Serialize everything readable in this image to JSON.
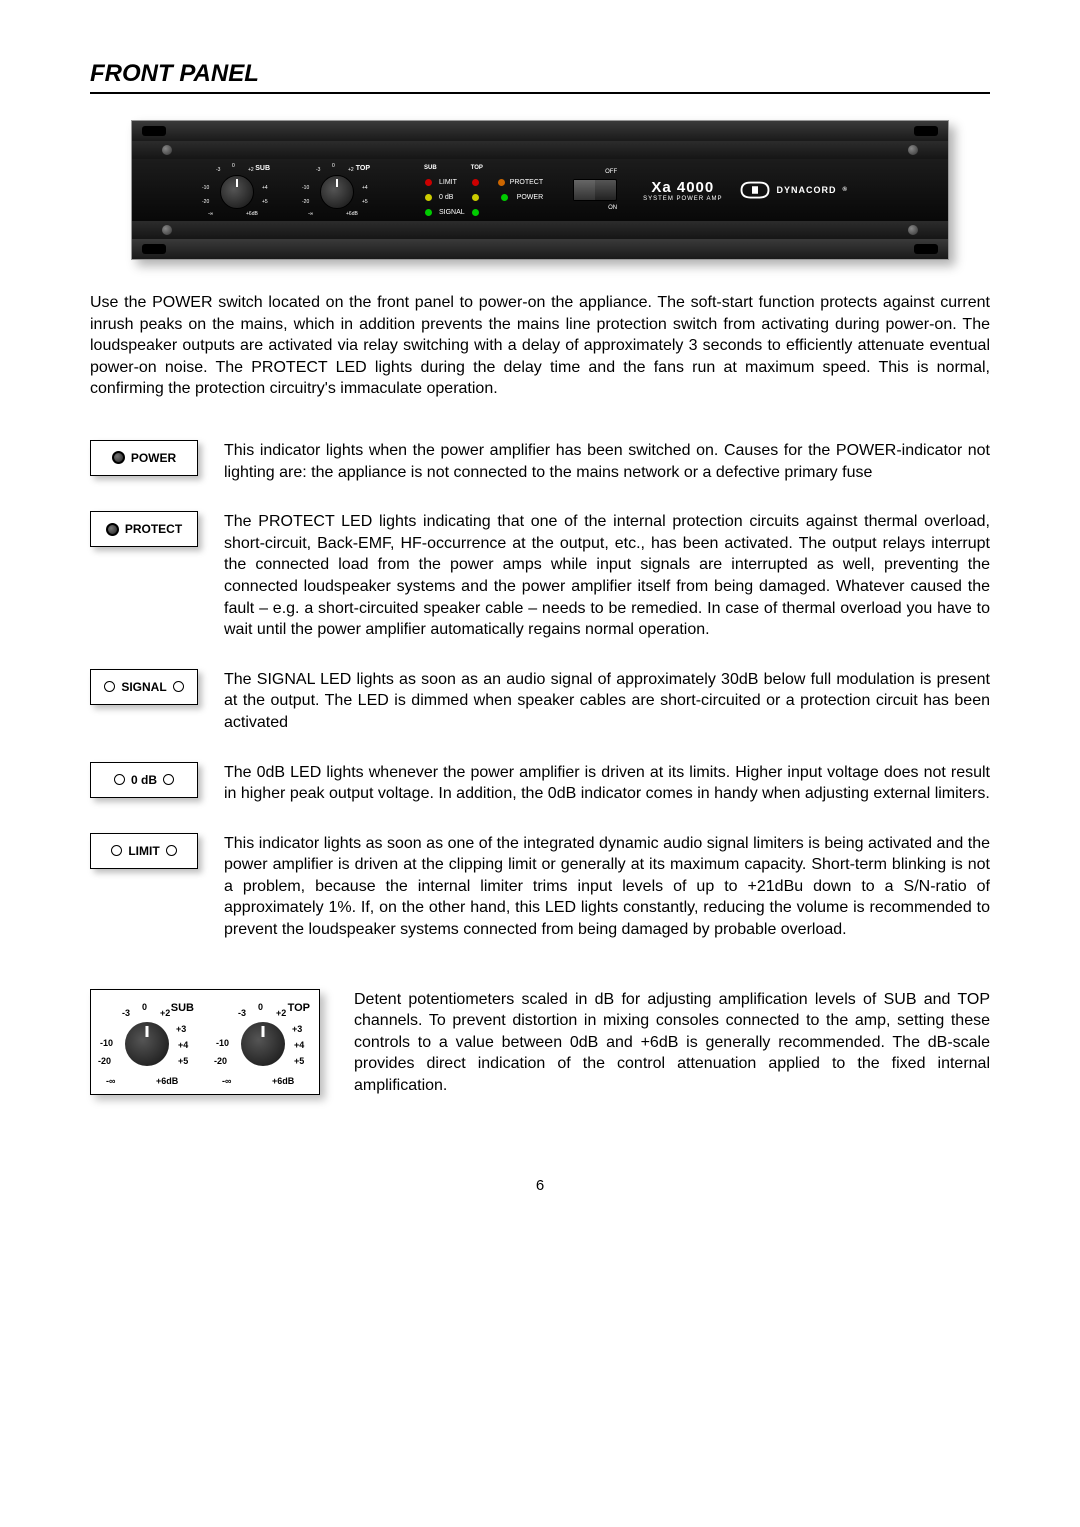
{
  "title": "FRONT PANEL",
  "panel": {
    "knob_sub_label": "SUB",
    "knob_top_label": "TOP",
    "knob_scale": [
      "-3",
      "0",
      "+2",
      "+3",
      "-10",
      "+4",
      "-20",
      "+5",
      "-∞",
      "+6dB"
    ],
    "led_headers": {
      "left": "SUB",
      "right": "TOP"
    },
    "led_rows": [
      "LIMIT",
      "0 dB",
      "SIGNAL"
    ],
    "status": {
      "protect": "PROTECT",
      "power": "POWER"
    },
    "switch": {
      "off": "OFF",
      "on": "ON"
    },
    "model_big": "Xa 4000",
    "model_small": "SYSTEM POWER AMP",
    "brand": "DYNACORD"
  },
  "intro": "Use the POWER switch located on the front panel to power-on the appliance. The soft-start function protects against current inrush peaks on the mains, which in addition prevents the mains line protection switch from activating during power-on. The loudspeaker outputs are activated via relay switching with a delay of approximately 3 seconds to efficiently attenuate eventual power-on noise. The PROTECT LED lights during the delay time and the fans run at maximum speed. This is normal, confirming the protection circuitry's immaculate operation.",
  "indicators": [
    {
      "label": "POWER",
      "dual": false,
      "text": "This indicator lights when the power amplifier has been switched on. Causes for the POWER-indicator not lighting are: the appliance is not connected to the mains network or a defective primary fuse"
    },
    {
      "label": "PROTECT",
      "dual": false,
      "text": "The PROTECT LED lights indicating that one of the internal protection circuits against thermal overload, short-circuit, Back-EMF, HF-occurrence at the output, etc., has been activated. The output relays interrupt the connected load from the power amps while input signals are interrupted as well, preventing the connected loudspeaker systems and the power amplifier itself from being damaged. Whatever caused the fault – e.g. a short-circuited speaker cable – needs to be remedied. In case of thermal overload you have to wait until the power amplifier automatically regains normal operation."
    },
    {
      "label": "SIGNAL",
      "dual": true,
      "text": "The SIGNAL LED lights as soon as an audio signal of approximately 30dB below full modulation is present at the output. The LED is dimmed when speaker cables are short-circuited or a protection circuit has been activated"
    },
    {
      "label": "0 dB",
      "dual": true,
      "text": "The 0dB LED lights whenever the power amplifier is driven at its limits. Higher input voltage does not result in higher peak output voltage. In addition, the 0dB indicator comes in handy when adjusting external limiters."
    },
    {
      "label": "LIMIT",
      "dual": true,
      "text": "This indicator lights as soon as one of the integrated dynamic audio signal limiters is being activated and the power amplifier is driven at the clipping limit or generally at its maximum capacity. Short-term blinking is not a problem, because the internal limiter trims input levels of up to +21dBu down to a S/N-ratio of approximately 1%. If, on the other hand, this LED lights constantly, reducing the volume is recommended to prevent the loudspeaker systems connected from being damaged by probable overload."
    }
  ],
  "pot": {
    "sub": "SUB",
    "top": "TOP",
    "scale": [
      "0",
      "-3",
      "+2",
      "+3",
      "-10",
      "+4",
      "-20",
      "+5",
      "-∞",
      "+6dB"
    ],
    "text": "Detent potentiometers scaled in dB for adjusting amplification levels of SUB and TOP channels. To prevent distortion in mixing consoles connected to the amp, setting these controls to a value between 0dB and +6dB is generally recommended. The dB-scale provides direct indication of the control attenuation applied to the fixed internal amplification."
  },
  "page_number": "6"
}
